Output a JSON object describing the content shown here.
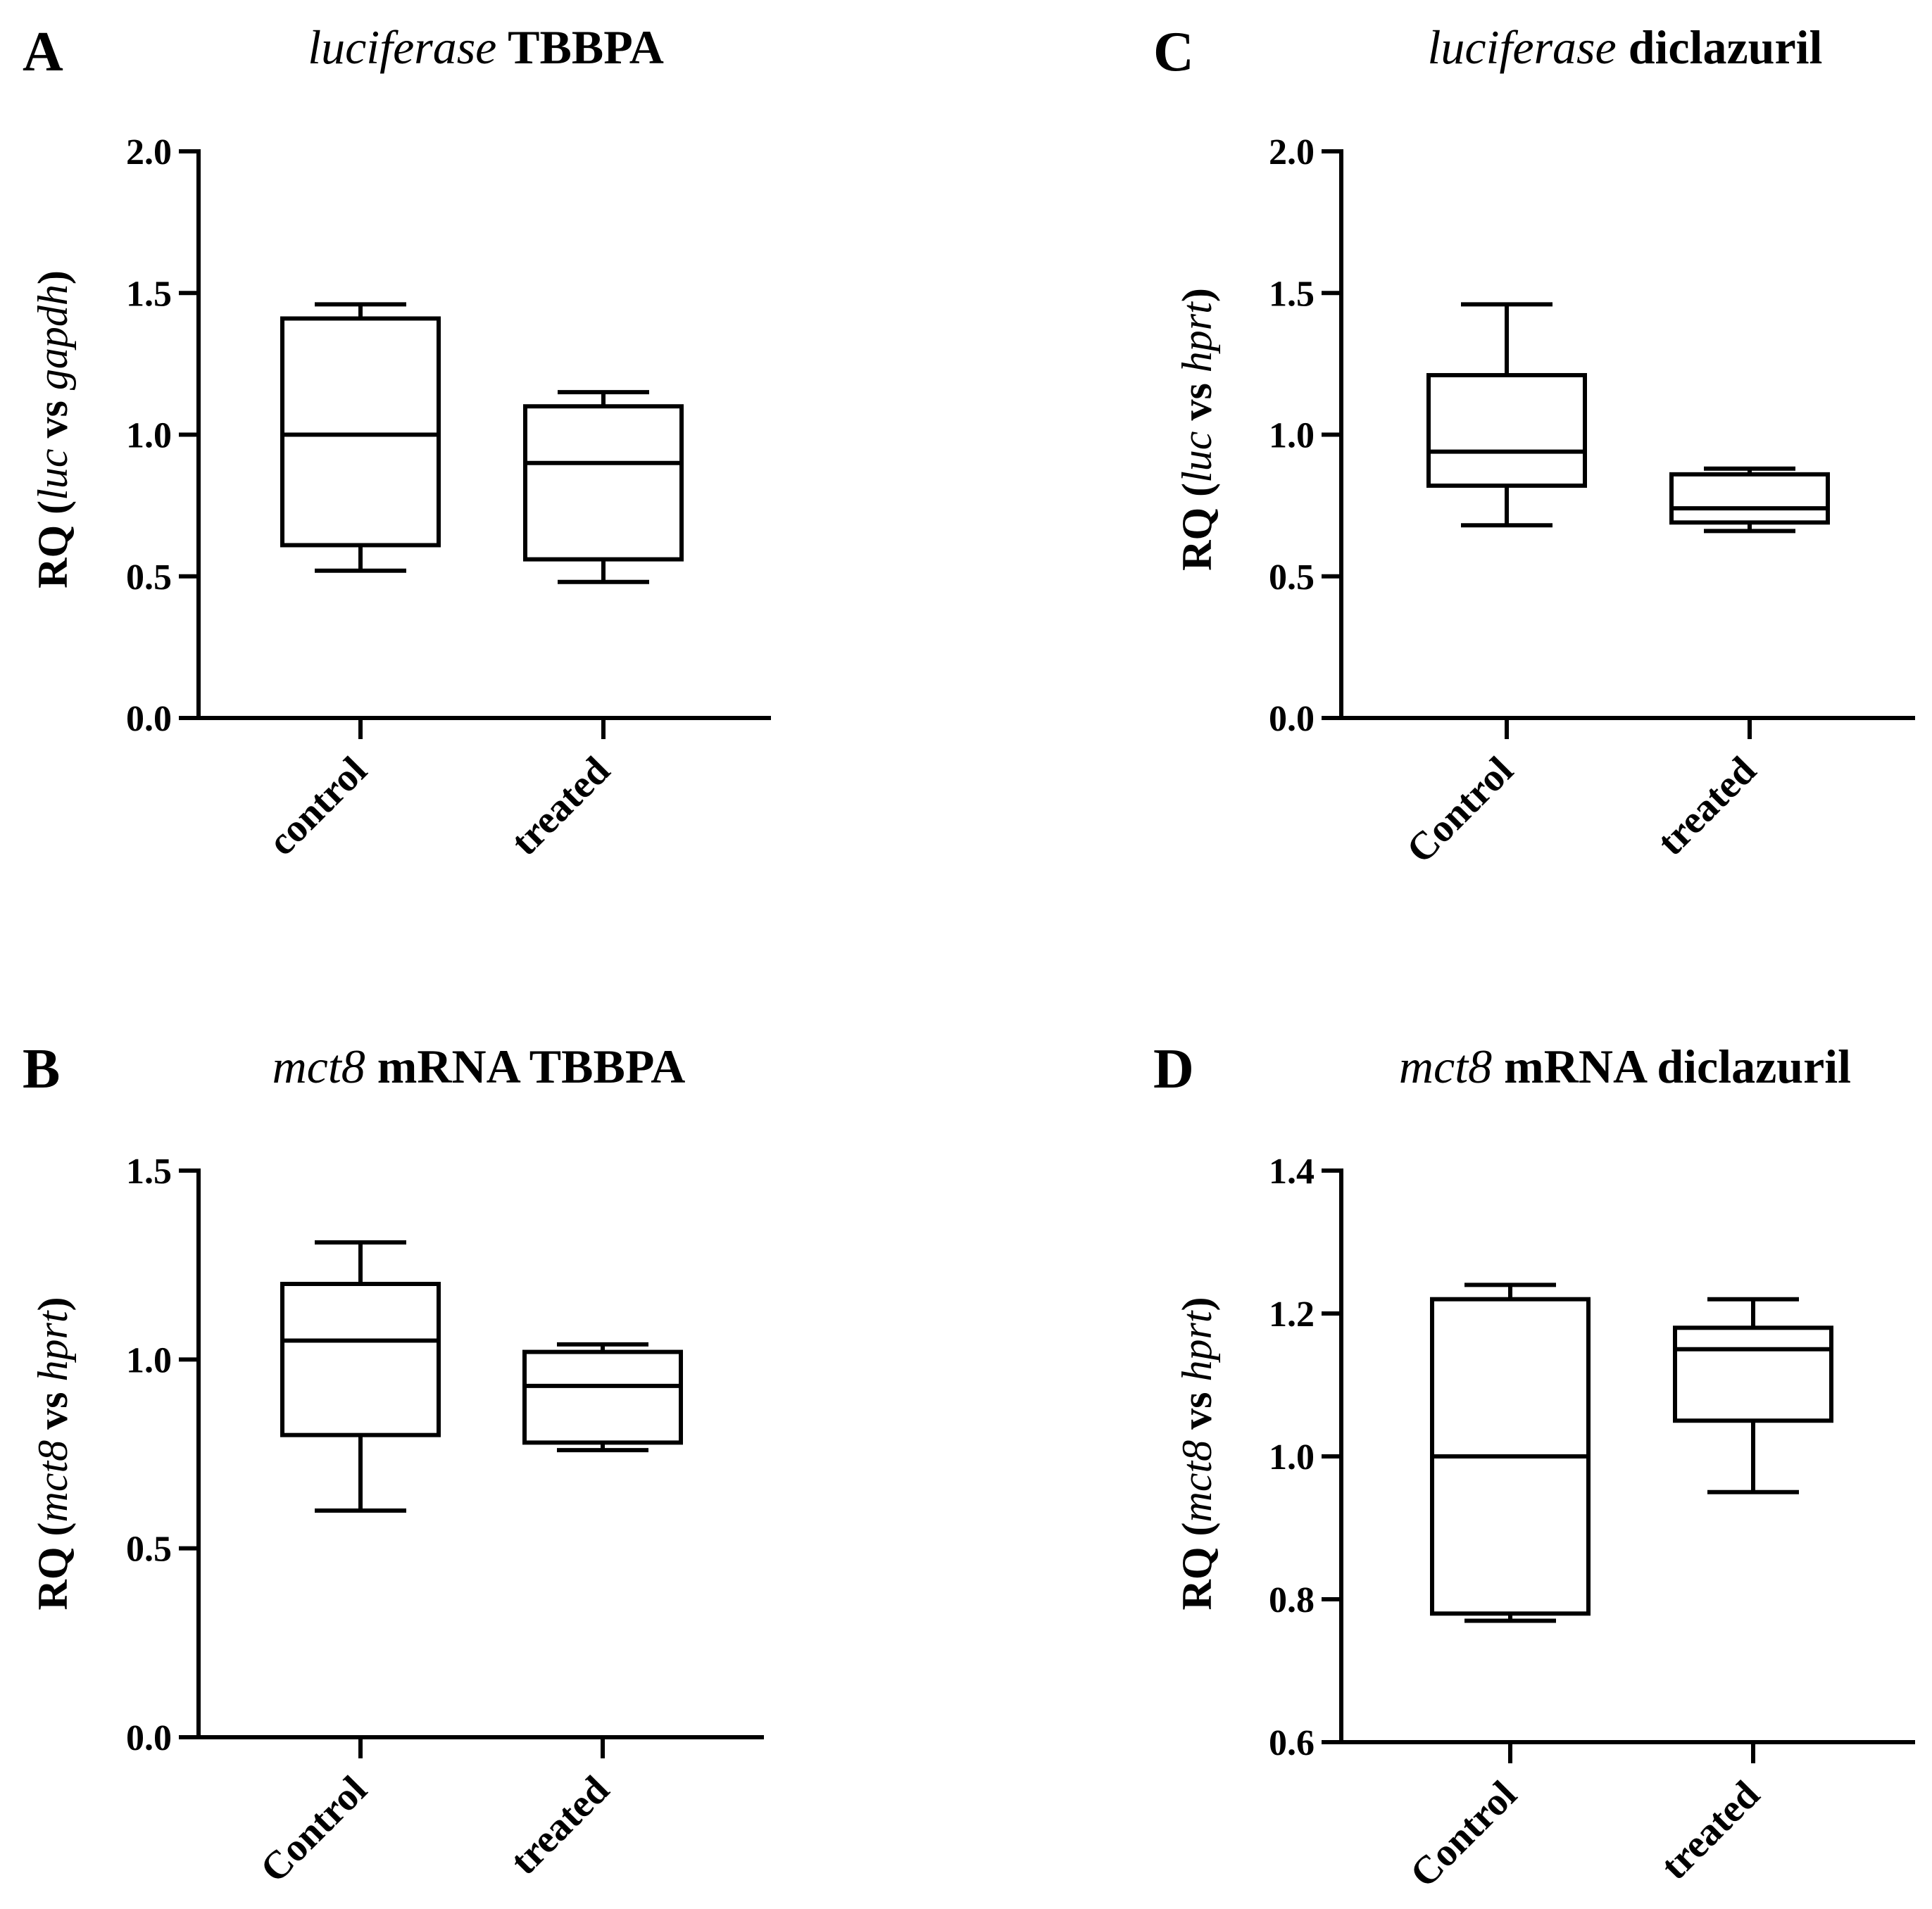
{
  "chart_data": [
    {
      "panel": "A",
      "type": "box",
      "title_italic": "luciferase",
      "title_rest": " TBBPA",
      "ylabel_parts": [
        {
          "t": "RQ (",
          "i": false
        },
        {
          "t": "luc",
          "i": true
        },
        {
          "t": " vs ",
          "i": false
        },
        {
          "t": "gapdh",
          "i": true
        },
        {
          "t": ")",
          "i": false
        }
      ],
      "ylim": [
        0,
        2.0
      ],
      "yticks": [
        "0.0",
        "0.5",
        "1.0",
        "1.5",
        "2.0"
      ],
      "categories": [
        "control",
        "treated"
      ],
      "boxes": [
        {
          "min": 0.52,
          "q1": 0.61,
          "median": 1.0,
          "q3": 1.41,
          "max": 1.46
        },
        {
          "min": 0.48,
          "q1": 0.56,
          "median": 0.9,
          "q3": 1.1,
          "max": 1.15
        }
      ]
    },
    {
      "panel": "B",
      "type": "box",
      "title_italic": "mct8",
      "title_rest": " mRNA TBBPA",
      "ylabel_parts": [
        {
          "t": "RQ (",
          "i": false
        },
        {
          "t": "mct8",
          "i": true
        },
        {
          "t": " vs ",
          "i": false
        },
        {
          "t": "hprt",
          "i": true
        },
        {
          "t": ")",
          "i": false
        }
      ],
      "ylim": [
        0,
        1.5
      ],
      "yticks": [
        "0.0",
        "0.5",
        "1.0",
        "1.5"
      ],
      "categories": [
        "Control",
        "treated"
      ],
      "boxes": [
        {
          "min": 0.6,
          "q1": 0.8,
          "median": 1.05,
          "q3": 1.2,
          "max": 1.31
        },
        {
          "min": 0.76,
          "q1": 0.78,
          "median": 0.93,
          "q3": 1.02,
          "max": 1.04
        }
      ]
    },
    {
      "panel": "C",
      "type": "box",
      "title_italic": "luciferase",
      "title_rest": " diclazuril",
      "ylabel_parts": [
        {
          "t": "RQ (",
          "i": false
        },
        {
          "t": "luc",
          "i": true
        },
        {
          "t": " vs ",
          "i": false
        },
        {
          "t": "hprt",
          "i": true
        },
        {
          "t": ")",
          "i": false
        }
      ],
      "ylim": [
        0,
        2.0
      ],
      "yticks": [
        "0.0",
        "0.5",
        "1.0",
        "1.5",
        "2.0"
      ],
      "categories": [
        "Control",
        "treated"
      ],
      "boxes": [
        {
          "min": 0.68,
          "q1": 0.82,
          "median": 0.94,
          "q3": 1.21,
          "max": 1.46
        },
        {
          "min": 0.66,
          "q1": 0.69,
          "median": 0.74,
          "q3": 0.86,
          "max": 0.88
        }
      ]
    },
    {
      "panel": "D",
      "type": "box",
      "title_italic": "mct8",
      "title_rest": " mRNA diclazuril",
      "ylabel_parts": [
        {
          "t": "RQ (",
          "i": false
        },
        {
          "t": "mct8",
          "i": true
        },
        {
          "t": " vs ",
          "i": false
        },
        {
          "t": "hprt",
          "i": true
        },
        {
          "t": ")",
          "i": false
        }
      ],
      "ylim": [
        0.6,
        1.4
      ],
      "yticks": [
        "0.6",
        "0.8",
        "1.0",
        "1.2",
        "1.4"
      ],
      "categories": [
        "Control",
        "treated"
      ],
      "boxes": [
        {
          "min": 0.77,
          "q1": 0.78,
          "median": 1.0,
          "q3": 1.22,
          "max": 1.24
        },
        {
          "min": 0.95,
          "q1": 1.05,
          "median": 1.15,
          "q3": 1.18,
          "max": 1.22
        }
      ]
    }
  ]
}
